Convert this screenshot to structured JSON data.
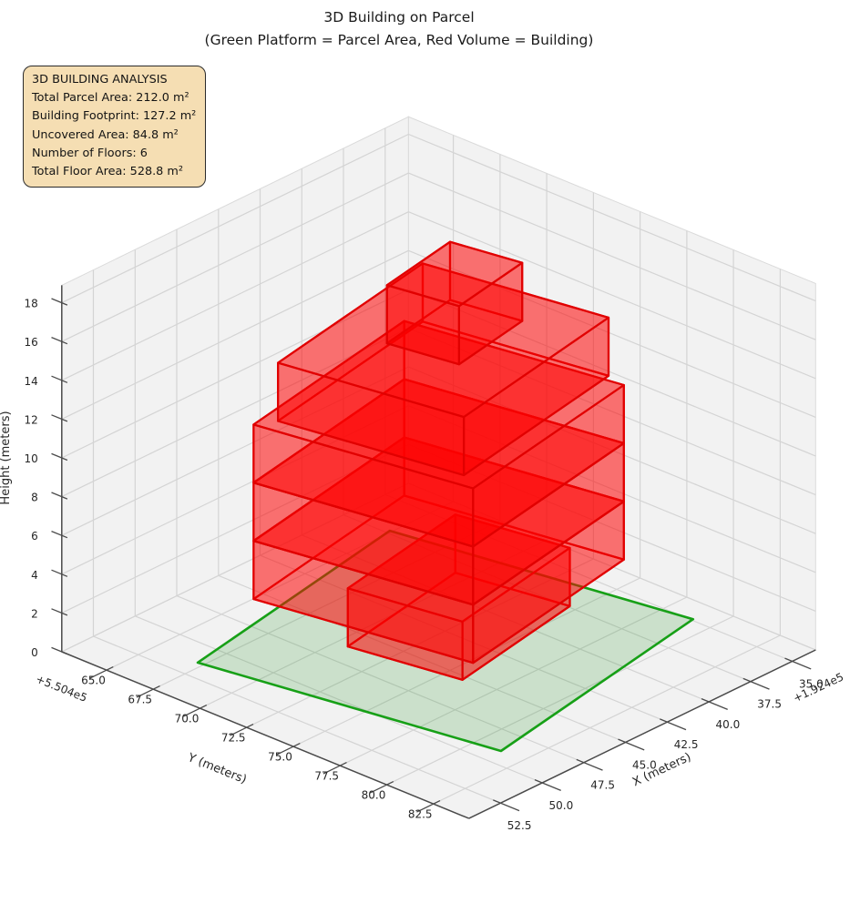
{
  "figure": {
    "title": "3D Building on Parcel",
    "subtitle": "(Green Platform = Parcel Area, Red Volume = Building)"
  },
  "analysis_box": {
    "bg_color": "#f5deb3",
    "border_color": "#2b2b2b",
    "lines": [
      "3D BUILDING ANALYSIS",
      "Total Parcel Area: 212.0 m²",
      "Building Footprint: 127.2 m²",
      "Uncovered Area: 84.8 m²",
      "Number of Floors: 6",
      "Total Floor Area: 528.8 m²"
    ]
  },
  "chart_data": {
    "type": "3d-building-massing",
    "title": "3D Building on Parcel",
    "subtitle": "(Green Platform = Parcel Area, Red Volume = Building)",
    "stats": {
      "total_parcel_area_m2": 212.0,
      "building_footprint_m2": 127.2,
      "uncovered_area_m2": 84.8,
      "number_of_floors": 6,
      "total_floor_area_m2": 528.8
    },
    "axes": {
      "x": {
        "label": "X (meters)",
        "offset_text": "+1.924e5",
        "ticks": [
          52.5,
          50.0,
          47.5,
          45.0,
          42.5,
          40.0,
          37.5,
          35.0
        ],
        "range": [
          33.6,
          54.4
        ],
        "decimals": 1
      },
      "y": {
        "label": "Y (meters)",
        "offset_text": "+5.504e5",
        "ticks": [
          65.0,
          67.5,
          70.0,
          72.5,
          75.0,
          77.5,
          80.0,
          82.5
        ],
        "range": [
          62.6,
          84.4
        ],
        "decimals": 1
      },
      "z": {
        "label": "Height (meters)",
        "ticks": [
          0,
          2,
          4,
          6,
          8,
          10,
          12,
          14,
          16,
          18
        ],
        "range": [
          0,
          18.9
        ],
        "decimals": 0
      }
    },
    "grid": true,
    "pane_color": "#f2f2f2",
    "grid_color": "#d4d4d4",
    "parcel": {
      "edge_color": "#17a017",
      "face_color": "#008000",
      "face_alpha": 0.16,
      "z": 0,
      "polygon": [
        [
          51.4,
          67.2
        ],
        [
          49.0,
          81.3
        ],
        [
          34.9,
          79.0
        ],
        [
          37.3,
          64.9
        ]
      ]
    },
    "building": {
      "edge_color": "#e00000",
      "face_color": "#ff0000",
      "face_alpha": 0.32,
      "floor_height_m": 3,
      "floors": [
        {
          "floor": 1,
          "z0": 0,
          "z1": 3,
          "polygon": [
            [
              46.2,
              70.6
            ],
            [
              45.29,
              75.92
            ],
            [
              37.4,
              74.63
            ],
            [
              38.31,
              69.31
            ]
          ]
        },
        {
          "floor": 2,
          "z0": 3,
          "z1": 6,
          "polygon": [
            [
              49.5,
              68.5
            ],
            [
              47.76,
              78.7
            ],
            [
              36.7,
              76.9
            ],
            [
              38.44,
              66.69
            ]
          ]
        },
        {
          "floor": 3,
          "z0": 6,
          "z1": 9,
          "polygon": [
            [
              49.5,
              68.5
            ],
            [
              47.76,
              78.7
            ],
            [
              36.7,
              76.9
            ],
            [
              38.44,
              66.69
            ]
          ]
        },
        {
          "floor": 4,
          "z0": 9,
          "z1": 12,
          "polygon": [
            [
              49.5,
              68.5
            ],
            [
              47.76,
              78.7
            ],
            [
              36.7,
              76.9
            ],
            [
              38.44,
              66.69
            ]
          ]
        },
        {
          "floor": 5,
          "z0": 12,
          "z1": 15,
          "polygon": [
            [
              48.6,
              69.0
            ],
            [
              47.13,
              77.64
            ],
            [
              36.5,
              75.9
            ],
            [
              37.97,
              67.26
            ]
          ]
        },
        {
          "floor": 6,
          "z0": 15,
          "z1": 18,
          "polygon": [
            [
              44.3,
              71.0
            ],
            [
              43.73,
              74.35
            ],
            [
              39.09,
              73.59
            ],
            [
              39.67,
              70.24
            ]
          ]
        }
      ]
    }
  }
}
